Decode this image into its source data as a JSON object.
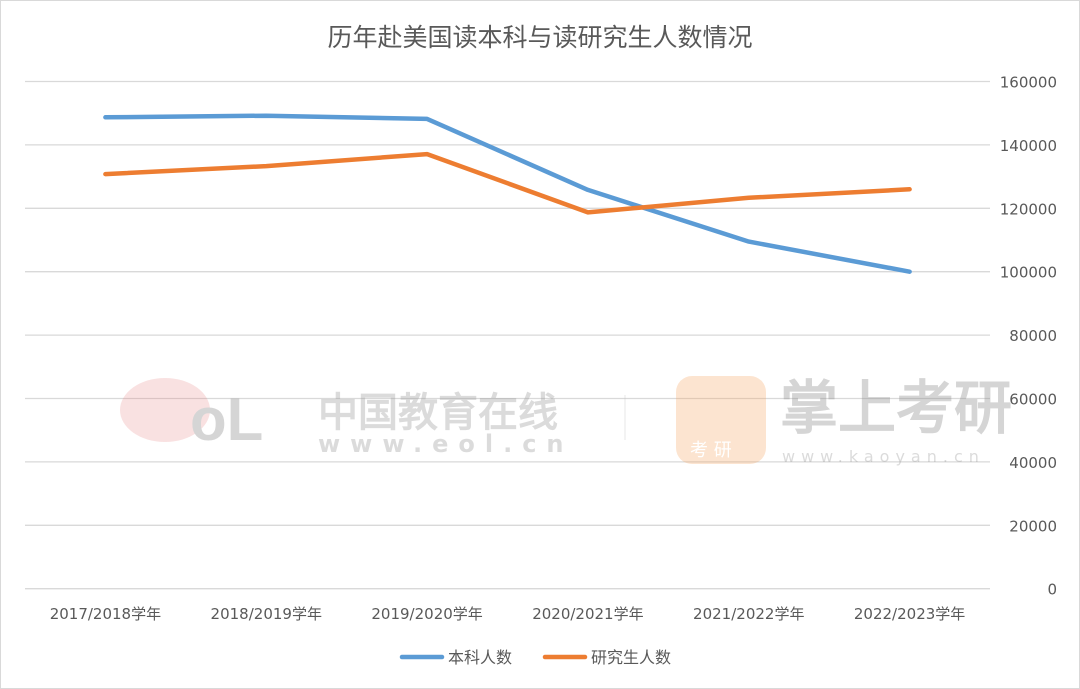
{
  "chart_data": {
    "type": "line",
    "title": "历年赴美国读本科与读研究生人数情况",
    "categories": [
      "2017/2018学年",
      "2018/2019学年",
      "2019/2020学年",
      "2020/2021学年",
      "2021/2022学年",
      "2022/2023学年"
    ],
    "series": [
      {
        "name": "本科人数",
        "color": "#5b9bd5",
        "values": [
          148700,
          149200,
          148200,
          125800,
          109500,
          100000
        ]
      },
      {
        "name": "研究生人数",
        "color": "#ed7d31",
        "values": [
          130800,
          133300,
          137100,
          118700,
          123300,
          126000
        ]
      }
    ],
    "ylim": [
      0,
      160000
    ],
    "yticks": [
      "0",
      "20000",
      "40000",
      "60000",
      "80000",
      "100000",
      "120000",
      "140000",
      "160000"
    ],
    "y_axis_side": "right",
    "grid": true,
    "legend": "bottom"
  },
  "watermarks": {
    "eol_name": "中国教育在线",
    "eol_url": "www.eol.cn",
    "kaoyan_name": "掌上考研",
    "kaoyan_badge": "考 研",
    "kaoyan_url": "www.kaoyan.cn"
  }
}
